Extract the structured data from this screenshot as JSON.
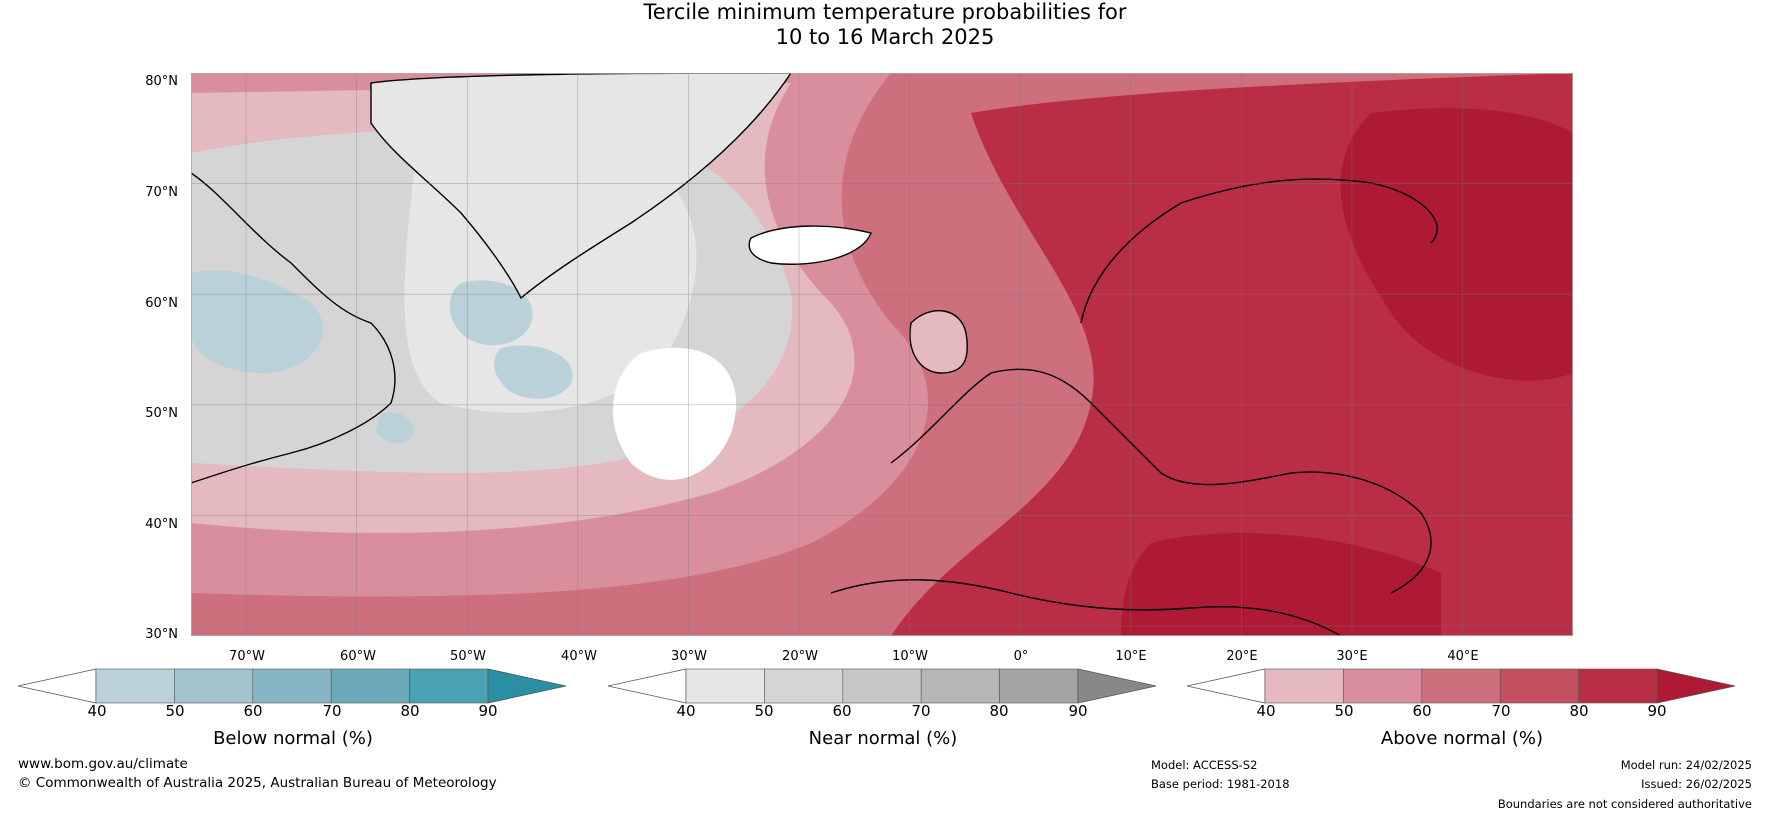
{
  "title_line1": "Tercile minimum temperature probabilities for",
  "title_line2": "10 to 16 March 2025",
  "lat_labels": [
    "80°N",
    "70°N",
    "60°N",
    "50°N",
    "40°N",
    "30°N"
  ],
  "lon_labels": [
    "70°W",
    "60°W",
    "50°W",
    "40°W",
    "30°W",
    "20°W",
    "10°W",
    "0°",
    "10°E",
    "20°E",
    "30°E",
    "40°E"
  ],
  "colorbars": [
    {
      "label": "Below normal (%)",
      "ticks": [
        "40",
        "50",
        "60",
        "70",
        "80",
        "90"
      ],
      "colors": [
        "#bad1d9",
        "#a4c4ce",
        "#88b5c3",
        "#6aaab8",
        "#4aa1b1",
        "#2a8fa3"
      ],
      "under": "#ffffff"
    },
    {
      "label": "Near normal (%)",
      "ticks": [
        "40",
        "50",
        "60",
        "70",
        "80",
        "90"
      ],
      "colors": [
        "#e6e6e6",
        "#d5d5d5",
        "#c6c6c6",
        "#b5b7b6",
        "#a3a3a3",
        "#888888"
      ],
      "under": "#ffffff"
    },
    {
      "label": "Above normal (%)",
      "ticks": [
        "40",
        "50",
        "60",
        "70",
        "80",
        "90"
      ],
      "colors": [
        "#e4b9c0",
        "#d98f9b",
        "#cd6f7d",
        "#c4505f",
        "#b92e44",
        "#ae1934"
      ],
      "under": "#ffffff"
    }
  ],
  "footer": {
    "website": "www.bom.gov.au/climate",
    "copyright": "© Commonwealth of Australia 2025, Australian Bureau of Meteorology",
    "model": "Model: ACCESS-S2",
    "base_period": "Base period: 1981-2018",
    "model_run": "Model run: 24/02/2025",
    "issued": "Issued: 26/02/2025",
    "disclaimer": "Boundaries are not considered authoritative"
  }
}
